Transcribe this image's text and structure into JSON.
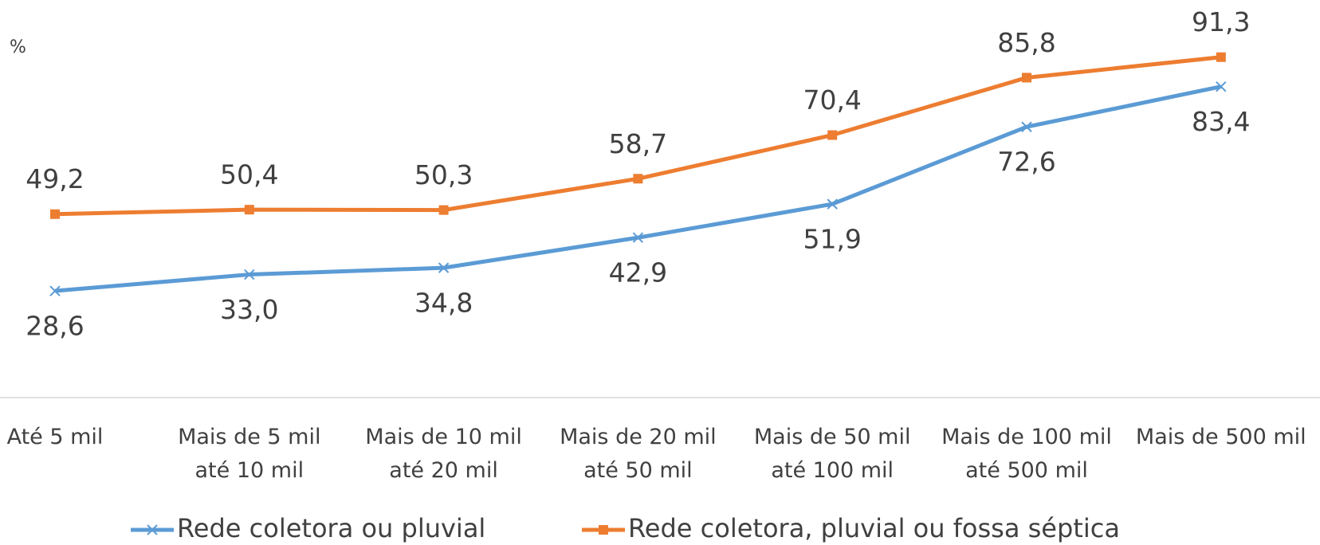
{
  "chart_data": {
    "type": "line",
    "y_label": "%",
    "categories": [
      "Até 5 mil",
      "Mais de 5 mil\naté 10 mil",
      "Mais de 10 mil\naté 20 mil",
      "Mais de 20 mil\naté 50 mil",
      "Mais de 50 mil\naté 100 mil",
      "Mais de 100 mil\naté 500 mil",
      "Mais de 500 mil"
    ],
    "series": [
      {
        "name": "Rede coletora ou pluvial",
        "color": "#5b9bd5",
        "marker": "x",
        "label_position": "below",
        "values": [
          28.6,
          33.0,
          34.8,
          42.9,
          51.9,
          72.6,
          83.4
        ],
        "value_labels": [
          "28,6",
          "33,0",
          "34,8",
          "42,9",
          "51,9",
          "72,6",
          "83,4"
        ]
      },
      {
        "name": "Rede coletora, pluvial ou fossa séptica",
        "color": "#ed7d31",
        "marker": "square",
        "label_position": "above",
        "values": [
          49.2,
          50.4,
          50.3,
          58.7,
          70.4,
          85.8,
          91.3
        ],
        "value_labels": [
          "49,2",
          "50,4",
          "50,3",
          "58,7",
          "70,4",
          "85,8",
          "91,3"
        ]
      }
    ],
    "ylim": [
      0,
      100
    ],
    "legend": "bottom"
  }
}
